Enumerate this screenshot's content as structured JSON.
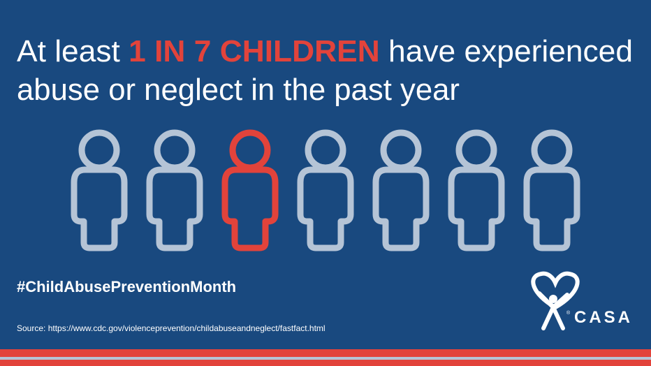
{
  "headline": {
    "line1_before": "At least ",
    "highlight": "1 IN 7 CHILDREN",
    "line1_after": " have experienced",
    "line2": "abuse or neglect in the past year"
  },
  "hashtag": "#ChildAbusePreventionMonth",
  "source": "Source: https://www.cdc.gov/violenceprevention/childabuseandneglect/fastfact.html",
  "logo": {
    "name": "CASA",
    "mark": "®"
  }
}
